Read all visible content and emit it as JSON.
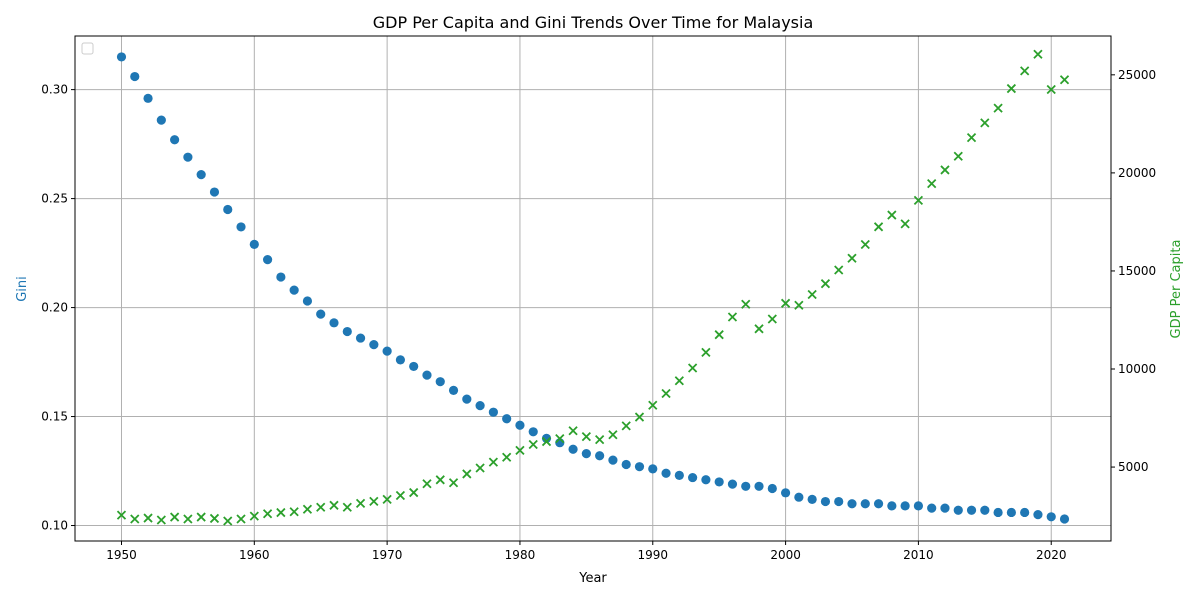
{
  "chart_data": {
    "type": "scatter",
    "title": "GDP Per Capita and Gini Trends Over Time for Malaysia",
    "xlabel": "Year",
    "ylabel_left": "Gini",
    "ylabel_right": "GDP Per Capita",
    "xlim": [
      1946.5,
      2024.5
    ],
    "ylim_left": [
      0.0929,
      0.3246
    ],
    "ylim_right": [
      1230,
      26980
    ],
    "x_ticks": [
      1950,
      1960,
      1970,
      1980,
      1990,
      2000,
      2010,
      2020
    ],
    "y_left_ticks": [
      0.1,
      0.15,
      0.2,
      0.25,
      0.3
    ],
    "y_left_tick_labels": [
      "0.10",
      "0.15",
      "0.20",
      "0.25",
      "0.30"
    ],
    "y_right_ticks": [
      5000,
      10000,
      15000,
      20000,
      25000
    ],
    "y_right_tick_labels": [
      "5000",
      "10000",
      "15000",
      "20000",
      "25000"
    ],
    "grid": true,
    "legend": {
      "placement": "upper-left",
      "entries": []
    },
    "colors": {
      "gini": "#1f77b4",
      "gdp": "#2ca02c",
      "grid": "#b0b0b0"
    },
    "x": [
      1950,
      1951,
      1952,
      1953,
      1954,
      1955,
      1956,
      1957,
      1958,
      1959,
      1960,
      1961,
      1962,
      1963,
      1964,
      1965,
      1966,
      1967,
      1968,
      1969,
      1970,
      1971,
      1972,
      1973,
      1974,
      1975,
      1976,
      1977,
      1978,
      1979,
      1980,
      1981,
      1982,
      1983,
      1984,
      1985,
      1986,
      1987,
      1988,
      1989,
      1990,
      1991,
      1992,
      1993,
      1994,
      1995,
      1996,
      1997,
      1998,
      1999,
      2000,
      2001,
      2002,
      2003,
      2004,
      2005,
      2006,
      2007,
      2008,
      2009,
      2010,
      2011,
      2012,
      2013,
      2014,
      2015,
      2016,
      2017,
      2018,
      2019,
      2020,
      2021
    ],
    "series": [
      {
        "axis": "left",
        "marker": "circle",
        "values": [
          0.315,
          0.306,
          0.296,
          0.286,
          0.277,
          0.269,
          0.261,
          0.253,
          0.245,
          0.237,
          0.229,
          0.222,
          0.214,
          0.208,
          0.203,
          0.197,
          0.193,
          0.189,
          0.186,
          0.183,
          0.18,
          0.176,
          0.173,
          0.169,
          0.166,
          0.162,
          0.158,
          0.155,
          0.152,
          0.149,
          0.146,
          0.143,
          0.14,
          0.138,
          0.135,
          0.133,
          0.132,
          0.13,
          0.128,
          0.127,
          0.126,
          0.124,
          0.123,
          0.122,
          0.121,
          0.12,
          0.119,
          0.118,
          0.118,
          0.117,
          0.115,
          0.113,
          0.112,
          0.111,
          0.111,
          0.11,
          0.11,
          0.11,
          0.109,
          0.109,
          0.109,
          0.108,
          0.108,
          0.107,
          0.107,
          0.107,
          0.106,
          0.106,
          0.106,
          0.105,
          0.104,
          0.103
        ]
      },
      {
        "axis": "right",
        "marker": "x",
        "values": [
          2550,
          2350,
          2400,
          2300,
          2450,
          2350,
          2450,
          2380,
          2250,
          2350,
          2500,
          2620,
          2680,
          2720,
          2850,
          2950,
          3050,
          2950,
          3150,
          3250,
          3350,
          3550,
          3700,
          4150,
          4350,
          4200,
          4650,
          4950,
          5250,
          5500,
          5850,
          6150,
          6300,
          6450,
          6850,
          6550,
          6400,
          6650,
          7100,
          7550,
          8150,
          8750,
          9400,
          10050,
          10850,
          11750,
          12650,
          13300,
          12050,
          12550,
          13350,
          13250,
          13800,
          14350,
          15050,
          15650,
          16350,
          17250,
          17850,
          17400,
          18600,
          19450,
          20150,
          20850,
          21800,
          22550,
          23300,
          24300,
          25200,
          26050,
          24250,
          24750
        ]
      }
    ]
  }
}
